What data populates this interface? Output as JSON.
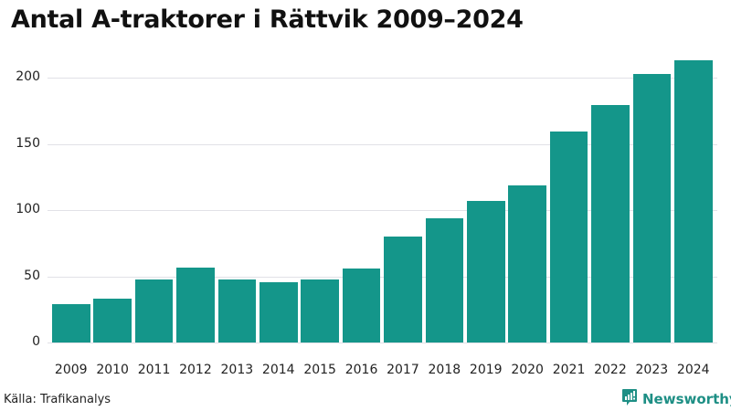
{
  "header": {
    "title": "Antal A-traktorer i Rättvik 2009–2024"
  },
  "footer": {
    "source": "Källa: Trafikanalys",
    "brand": "Newsworthy",
    "brand_icon": "newsworthy-logo-icon"
  },
  "colors": {
    "bar": "#14968a",
    "grid": "#e1e1e7",
    "brand": "#1e8f85"
  },
  "chart_data": {
    "type": "bar",
    "title": "Antal A-traktorer i Rättvik 2009–2024",
    "xlabel": "",
    "ylabel": "",
    "categories": [
      "2009",
      "2010",
      "2011",
      "2012",
      "2013",
      "2014",
      "2015",
      "2016",
      "2017",
      "2018",
      "2019",
      "2020",
      "2021",
      "2022",
      "2023",
      "2024"
    ],
    "values": [
      29,
      33,
      48,
      57,
      48,
      46,
      48,
      56,
      80,
      94,
      107,
      119,
      159,
      179,
      203,
      213
    ],
    "ylim": [
      0,
      220
    ],
    "yticks": [
      "0",
      "50",
      "100",
      "150",
      "200"
    ],
    "grid": true,
    "legend": null
  }
}
